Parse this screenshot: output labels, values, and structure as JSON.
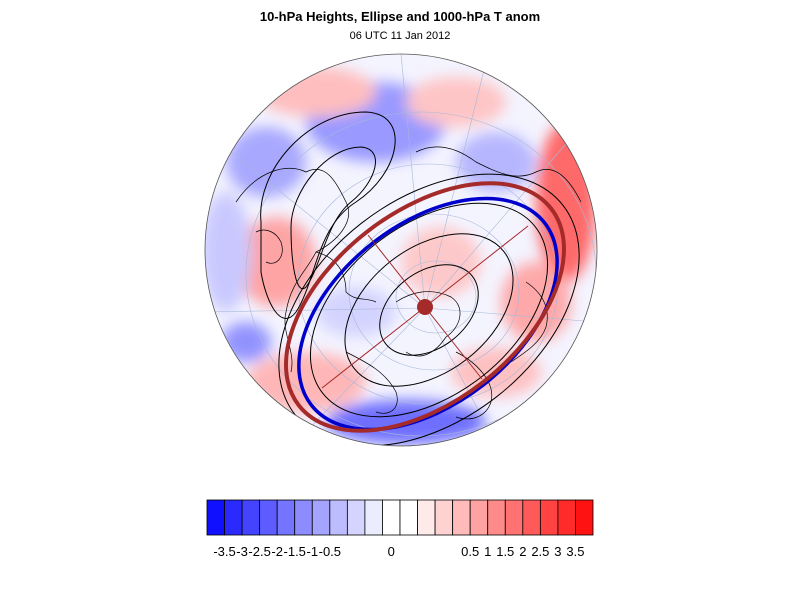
{
  "title": "10-hPa Heights, Ellipse and 1000-hPa T anom",
  "subtitle": "06 UTC 11 Jan 2012",
  "colorbar": {
    "tick_labels": [
      "-3.5",
      "-3",
      "-2.5",
      "-2",
      "-1.5",
      "-1",
      "-0.5",
      "0",
      "0.5",
      "1",
      "1.5",
      "2",
      "2.5",
      "3",
      "3.5"
    ],
    "colors": [
      "#1010ff",
      "#2a2aff",
      "#4444ff",
      "#5c5cff",
      "#7474ff",
      "#8c8cff",
      "#a4a4ff",
      "#bcbcff",
      "#d4d4ff",
      "#ececff",
      "#ffffff",
      "#ffffff",
      "#ffeaea",
      "#ffd2d2",
      "#ffbaba",
      "#ffa2a2",
      "#ff8a8a",
      "#ff7272",
      "#ff5a5a",
      "#ff4242",
      "#ff2a2a",
      "#ff1212"
    ]
  },
  "colors": {
    "ellipse": "#a52a2a",
    "contour_highlight": "#0000cc",
    "warm": "#ff4040",
    "cold": "#4040ff"
  }
}
